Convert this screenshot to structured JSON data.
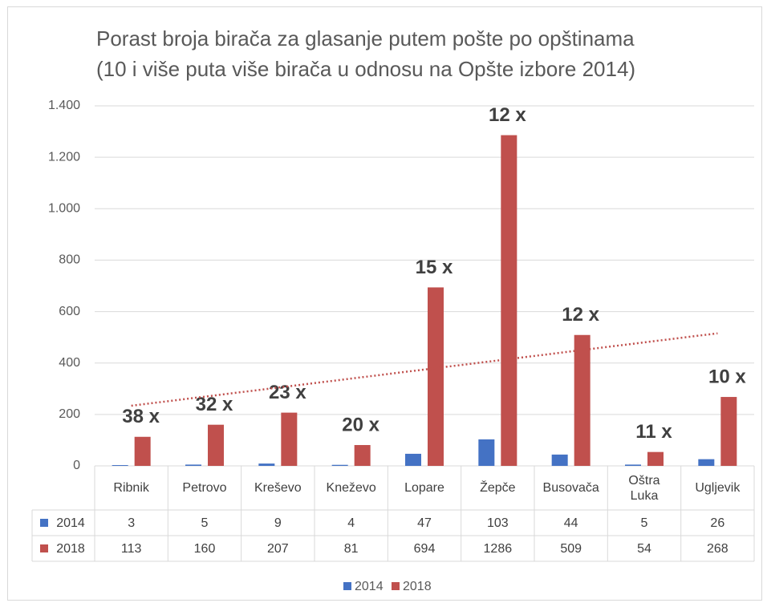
{
  "chart_data": {
    "type": "bar",
    "title": [
      "Porast broja birača za glasanje putem pošte po opštinama",
      "(10 i više puta više birača u odnosu na Opšte izbore 2014)"
    ],
    "categories": [
      "Ribnik",
      "Petrovo",
      "Kreševo",
      "Kneževo",
      "Lopare",
      "Žepče",
      "Busovača",
      "Oštra Luka",
      "Ugljevik"
    ],
    "series": [
      {
        "name": "2014",
        "color": "#4472c4",
        "values": [
          3,
          5,
          9,
          4,
          47,
          103,
          44,
          5,
          26
        ]
      },
      {
        "name": "2018",
        "color": "#c0504d",
        "values": [
          113,
          160,
          207,
          81,
          694,
          1286,
          509,
          54,
          268
        ]
      }
    ],
    "annotations": [
      "38 x",
      "32 x",
      "23 x",
      "20 x",
      "15 x",
      "12 x",
      "12 x",
      "11 x",
      "10 x"
    ],
    "ylim": [
      0,
      1400
    ],
    "yticks": [
      0,
      200,
      400,
      600,
      800,
      {
        "value": 1000,
        "label": "1.000"
      },
      {
        "value": 1200,
        "label": "1.200"
      },
      {
        "value": 1400,
        "label": "1.400"
      }
    ],
    "grid": true,
    "trendline": {
      "series": 1,
      "kind": "linear",
      "color": "#c0504d"
    },
    "legend": "bottom",
    "data_table": true
  }
}
